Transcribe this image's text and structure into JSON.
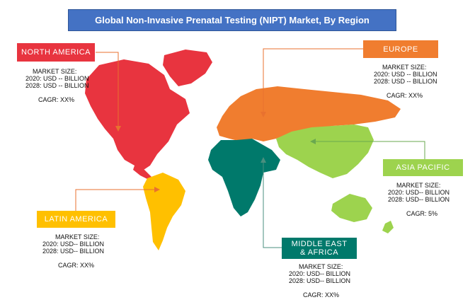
{
  "title": "Global  Non-Invasive Prenatal Testing (NIPT) Market, By Region",
  "colors": {
    "title_bg": "#4472c4",
    "north_america": "#e8343f",
    "europe": "#f07d2f",
    "asia_pacific": "#9dd34e",
    "latin_america": "#ffc000",
    "middle_east_africa": "#00796b",
    "leader_line": "#e8712f"
  },
  "regions": {
    "north_america": {
      "name": "NORTH AMERICA",
      "market_size_label": "MARKET SIZE:",
      "value_2020": "2020: USD -- BILLION",
      "value_2028": "2028: USD -- BILLION",
      "cagr": "CAGR: XX%"
    },
    "europe": {
      "name": "EUROPE",
      "market_size_label": "MARKET SIZE:",
      "value_2020": "2020: USD -- BILLION",
      "value_2028": "2028: USD -- BILLION",
      "cagr": "CAGR: XX%"
    },
    "asia_pacific": {
      "name": "ASIA PACIFIC",
      "market_size_label": "MARKET SIZE:",
      "value_2020": "2020: USD-- BILLION",
      "value_2028": "2028: USD-- BILLION",
      "cagr": "CAGR: 5%"
    },
    "latin_america": {
      "name": "LATIN AMERICA",
      "market_size_label": "MARKET SIZE:",
      "value_2020": "2020: USD-- BILLION",
      "value_2028": "2028: USD-- BILLION",
      "cagr": "CAGR: XX%"
    },
    "middle_east_africa": {
      "name_line1": "MIDDLE EAST",
      "name_line2": "& AFRICA",
      "market_size_label": "MARKET SIZE:",
      "value_2020": "2020: USD-- BILLION",
      "value_2028": "2028: USD-- BILLION",
      "cagr": "CAGR: XX%"
    }
  }
}
